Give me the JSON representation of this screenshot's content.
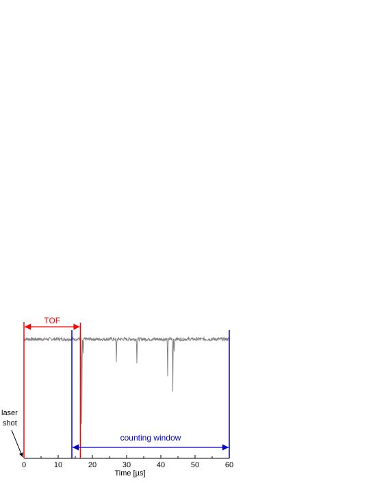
{
  "chart_data": {
    "type": "line",
    "title": "",
    "xlabel": "Time [µs]",
    "ylabel": "",
    "xlim": [
      0,
      60
    ],
    "ylim": [
      -1,
      0.05
    ],
    "x_ticks": [
      0,
      10,
      20,
      30,
      40,
      50,
      60
    ],
    "grid": false,
    "legend": "none",
    "series": [
      {
        "color": "#808080",
        "baseline": 0,
        "dips": [
          {
            "x": 16.9,
            "depth": 0.87
          },
          {
            "x": 17.3,
            "depth": 0.15
          },
          {
            "x": 27.0,
            "depth": 0.24
          },
          {
            "x": 33.0,
            "depth": 0.23
          },
          {
            "x": 42.0,
            "depth": 0.39
          },
          {
            "x": 43.5,
            "depth": 0.53
          },
          {
            "x": 43.9,
            "depth": 0.12
          }
        ]
      }
    ],
    "markers": {
      "red_lines_x": [
        0,
        16.5
      ],
      "blue_lines_x": [
        14,
        60
      ],
      "color_red": "#ff0000",
      "color_blue": "#0000cc"
    },
    "annotations": {
      "tof_label": "TOF",
      "window_label": "counting window",
      "laser_line1": "laser",
      "laser_line2": "shot"
    }
  }
}
